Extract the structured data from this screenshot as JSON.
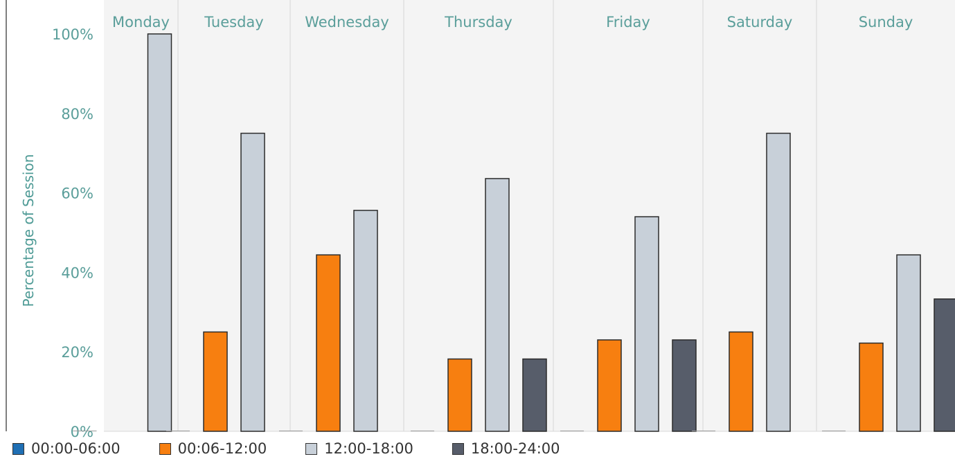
{
  "chart_data": {
    "type": "bar",
    "ylabel": "Percentage of Session",
    "xlabel": "",
    "ylim": [
      0,
      1.0
    ],
    "y_ticks": [
      "0%",
      "20%",
      "40%",
      "60%",
      "80%",
      "100%"
    ],
    "grid": false,
    "categories": [
      "Monday",
      "Tuesday",
      "Wednesday",
      "Thursday",
      "Friday",
      "Saturday",
      "Sunday"
    ],
    "series": [
      {
        "name": "00:00-06:00",
        "color": "#1f6fb4",
        "values": [
          0,
          0,
          0,
          0,
          0,
          0,
          0
        ]
      },
      {
        "name": "00:06-12:00",
        "color": "#f77f10",
        "values": [
          null,
          0.25,
          0.444,
          0.182,
          0.23,
          0.25,
          0.222
        ]
      },
      {
        "name": "12:00-18:00",
        "color": "#c8d0d9",
        "values": [
          1.0,
          0.75,
          0.556,
          0.636,
          0.54,
          0.75,
          0.444
        ]
      },
      {
        "name": "18:00-24:00",
        "color": "#575d6a",
        "values": [
          null,
          null,
          null,
          0.182,
          0.23,
          null,
          0.333
        ]
      }
    ],
    "legend_position": "bottom-left"
  }
}
